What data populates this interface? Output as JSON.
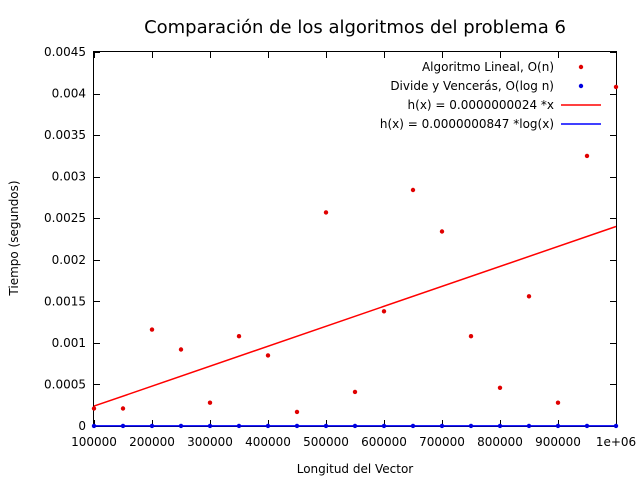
{
  "chart_data": {
    "type": "scatter",
    "title": "Comparación de los algoritmos del problema 6",
    "xlabel": "Longitud del Vector",
    "ylabel": "Tiempo (segundos)",
    "xlim": [
      100000,
      1000000
    ],
    "ylim": [
      0,
      0.0045
    ],
    "x_ticks": [
      100000,
      200000,
      300000,
      400000,
      500000,
      600000,
      700000,
      800000,
      900000,
      1000000
    ],
    "x_tick_labels": [
      "100000",
      "200000",
      "300000",
      "400000",
      "500000",
      "600000",
      "700000",
      "800000",
      "900000",
      "1e+06"
    ],
    "y_ticks": [
      0,
      0.0005,
      0.001,
      0.0015,
      0.002,
      0.0025,
      0.003,
      0.0035,
      0.004,
      0.0045
    ],
    "y_tick_labels": [
      "0",
      "0.0005",
      "0.001",
      "0.0015",
      "0.002",
      "0.0025",
      "0.003",
      "0.0035",
      "0.004",
      "0.0045"
    ],
    "grid": false,
    "legend_position": "top-right",
    "series": [
      {
        "name": "Algoritmo Lineal, O(n)",
        "kind": "points",
        "color": "#e00000",
        "x": [
          100000,
          150000,
          200000,
          250000,
          300000,
          350000,
          400000,
          450000,
          500000,
          550000,
          600000,
          650000,
          700000,
          750000,
          800000,
          850000,
          900000,
          950000,
          1000000
        ],
        "y": [
          0.00021,
          0.00021,
          0.00116,
          0.00092,
          0.00028,
          0.00108,
          0.00085,
          0.00017,
          0.00257,
          0.00041,
          0.00138,
          0.00284,
          0.00234,
          0.00108,
          0.00046,
          0.00156,
          0.00028,
          0.00325,
          0.00408
        ]
      },
      {
        "name": "Divide y Vencerás, O(log n)",
        "kind": "points",
        "color": "#0000e0",
        "x": [
          100000,
          150000,
          200000,
          250000,
          300000,
          350000,
          400000,
          450000,
          500000,
          550000,
          600000,
          650000,
          700000,
          750000,
          800000,
          850000,
          900000,
          950000,
          1000000
        ],
        "y": [
          1e-06,
          1e-06,
          1e-06,
          1.1e-06,
          1.1e-06,
          1.1e-06,
          1.1e-06,
          1.1e-06,
          1.1e-06,
          1.1e-06,
          1.1e-06,
          1.1e-06,
          1.1e-06,
          1.2e-06,
          1.2e-06,
          1.2e-06,
          1.2e-06,
          1.2e-06,
          1.2e-06
        ]
      },
      {
        "name": "h(x) = 0.0000000024 *x",
        "kind": "line",
        "color": "#ff0000",
        "x": [
          100000,
          1000000
        ],
        "y": [
          0.00024,
          0.0024
        ]
      },
      {
        "name": "h(x) = 0.0000000847 *log(x)",
        "kind": "line",
        "color": "#0000ff",
        "x": [
          100000,
          1000000
        ],
        "y": [
          9.8e-07,
          1.17e-06
        ]
      }
    ]
  }
}
